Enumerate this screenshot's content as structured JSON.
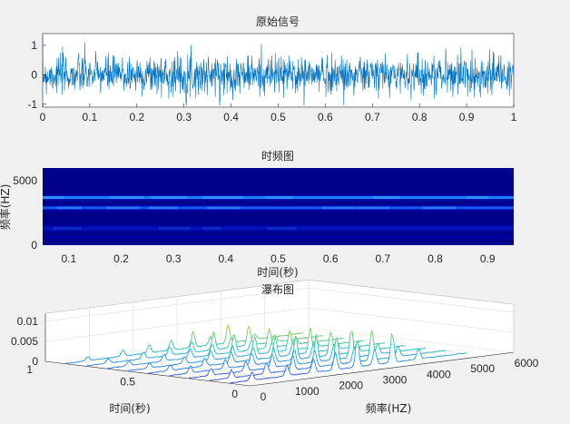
{
  "chart_data": [
    {
      "type": "line",
      "title": "原始信号",
      "xlim": [
        0,
        1
      ],
      "ylim": [
        -1.1,
        1.4
      ],
      "xticks": [
        "0",
        "0.1",
        "0.2",
        "0.3",
        "0.4",
        "0.5",
        "0.6",
        "0.7",
        "0.8",
        "0.9",
        "1"
      ],
      "yticks": [
        "-1",
        "0",
        "1"
      ],
      "series_color": "#0072bd",
      "grid": false
    },
    {
      "type": "heatmap",
      "title": "时频图",
      "xlabel": "时间(秒)",
      "ylabel": "频率(HZ)",
      "xlim": [
        0.05,
        0.95
      ],
      "ylim": [
        0,
        6000
      ],
      "xticks": [
        "0.1",
        "0.2",
        "0.3",
        "0.4",
        "0.5",
        "0.6",
        "0.7",
        "0.8",
        "0.9"
      ],
      "yticks": [
        "0",
        "5000"
      ],
      "bright_bands_hz": [
        3700,
        2900,
        1300
      ],
      "colormap": "jet"
    },
    {
      "type": "line",
      "title": "瀑布图",
      "xlabel": "时间(秒)",
      "ylabel": "频率(HZ)",
      "view": "3d",
      "time_ticks": [
        "0",
        "0.5",
        "1"
      ],
      "freq_ticks": [
        "0",
        "1000",
        "2000",
        "3000",
        "4000",
        "5000",
        "6000"
      ],
      "z_ticks": [
        "0",
        "0.005",
        "0.01"
      ],
      "time_slices": [
        0.1,
        0.2,
        0.3,
        0.4,
        0.5,
        0.6,
        0.7,
        0.8,
        0.9
      ],
      "zlim": [
        0,
        0.012
      ],
      "colormap": "parula"
    }
  ]
}
